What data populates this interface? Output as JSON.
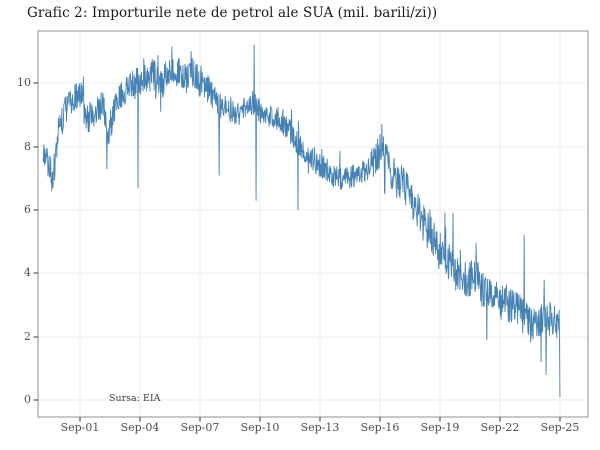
{
  "chart_data": {
    "type": "line",
    "title": "Grafic 2: Importurile nete de petrol ale SUA (mil. barili/zi))",
    "source_note": "Sursa: EIA",
    "series_name": "Importuri nete de petrol SUA",
    "unit": "mil. barili/zi",
    "sampling": "weekly",
    "legend": "none",
    "grid": "on",
    "line_color": "#4682b4",
    "grid_color": "#ececec",
    "panel_border_color": "#919191",
    "tick_mark_color": "#333333",
    "tick_label_color": "#4d4d4d",
    "title_color": "#1a1a1a",
    "x_ticks": [
      {
        "label": "Sep-01",
        "year": 2001.75
      },
      {
        "label": "Sep-04",
        "year": 2004.75
      },
      {
        "label": "Sep-07",
        "year": 2007.75
      },
      {
        "label": "Sep-10",
        "year": 2010.75
      },
      {
        "label": "Sep-13",
        "year": 2013.75
      },
      {
        "label": "Sep-16",
        "year": 2016.75
      },
      {
        "label": "Sep-19",
        "year": 2019.75
      },
      {
        "label": "Sep-22",
        "year": 2022.75
      },
      {
        "label": "Sep-25",
        "year": 2025.75
      }
    ],
    "y_ticks": [
      0,
      2,
      4,
      6,
      8,
      10
    ],
    "x_domain_years": [
      1999.65,
      2027.15
    ],
    "y_domain": [
      -0.54,
      11.65
    ],
    "data_start_year": 1999.9,
    "data_end_year": 2025.75,
    "trend_points": [
      [
        1999.9,
        7.9
      ],
      [
        2000.15,
        7.5
      ],
      [
        2000.4,
        7.0
      ],
      [
        2000.7,
        8.6
      ],
      [
        2001.0,
        9.1
      ],
      [
        2001.3,
        9.5
      ],
      [
        2001.8,
        9.6
      ],
      [
        2002.1,
        8.9
      ],
      [
        2002.5,
        9.0
      ],
      [
        2002.9,
        9.3
      ],
      [
        2003.1,
        8.3
      ],
      [
        2003.4,
        9.0
      ],
      [
        2003.8,
        9.6
      ],
      [
        2004.2,
        9.9
      ],
      [
        2004.6,
        10.0
      ],
      [
        2005.0,
        10.1
      ],
      [
        2005.4,
        10.3
      ],
      [
        2005.8,
        9.9
      ],
      [
        2006.1,
        10.3
      ],
      [
        2006.4,
        10.5
      ],
      [
        2006.9,
        10.2
      ],
      [
        2007.3,
        10.4
      ],
      [
        2007.8,
        10.0
      ],
      [
        2008.2,
        9.8
      ],
      [
        2008.7,
        9.3
      ],
      [
        2009.1,
        9.2
      ],
      [
        2009.6,
        9.0
      ],
      [
        2010.0,
        9.2
      ],
      [
        2010.4,
        9.4
      ],
      [
        2011.0,
        8.9
      ],
      [
        2011.4,
        9.0
      ],
      [
        2011.9,
        8.8
      ],
      [
        2012.3,
        8.4
      ],
      [
        2012.8,
        8.0
      ],
      [
        2013.2,
        7.7
      ],
      [
        2013.7,
        7.4
      ],
      [
        2014.1,
        7.3
      ],
      [
        2014.6,
        7.0
      ],
      [
        2015.0,
        7.0
      ],
      [
        2015.5,
        7.1
      ],
      [
        2016.0,
        7.2
      ],
      [
        2016.4,
        7.6
      ],
      [
        2016.8,
        8.0
      ],
      [
        2017.1,
        7.5
      ],
      [
        2017.5,
        7.0
      ],
      [
        2018.0,
        6.7
      ],
      [
        2018.5,
        6.1
      ],
      [
        2019.0,
        5.5
      ],
      [
        2019.5,
        5.0
      ],
      [
        2020.0,
        4.6
      ],
      [
        2020.5,
        4.0
      ],
      [
        2021.0,
        3.8
      ],
      [
        2021.5,
        3.9
      ],
      [
        2022.0,
        3.4
      ],
      [
        2022.5,
        3.2
      ],
      [
        2023.0,
        3.0
      ],
      [
        2023.5,
        3.0
      ],
      [
        2024.0,
        2.7
      ],
      [
        2024.5,
        2.4
      ],
      [
        2025.0,
        2.5
      ],
      [
        2025.4,
        2.6
      ],
      [
        2025.75,
        2.4
      ]
    ],
    "noise_eras": [
      [
        1999.9,
        2008.5,
        0.48
      ],
      [
        2008.5,
        2016.4,
        0.38
      ],
      [
        2016.4,
        2022.3,
        0.6
      ],
      [
        2022.3,
        2025.8,
        0.55
      ]
    ],
    "spike_events": [
      [
        2000.35,
        6.6
      ],
      [
        2003.1,
        7.3
      ],
      [
        2004.65,
        6.7
      ],
      [
        2006.35,
        11.15
      ],
      [
        2007.3,
        11.0
      ],
      [
        2008.7,
        7.1
      ],
      [
        2010.45,
        11.2
      ],
      [
        2010.55,
        6.3
      ],
      [
        2012.65,
        6.0
      ],
      [
        2016.85,
        8.7
      ],
      [
        2020.4,
        5.9
      ],
      [
        2021.55,
        4.95
      ],
      [
        2022.1,
        1.9
      ],
      [
        2023.95,
        5.2
      ],
      [
        2024.8,
        1.2
      ],
      [
        2025.05,
        0.8
      ],
      [
        2025.75,
        0.1
      ]
    ]
  }
}
